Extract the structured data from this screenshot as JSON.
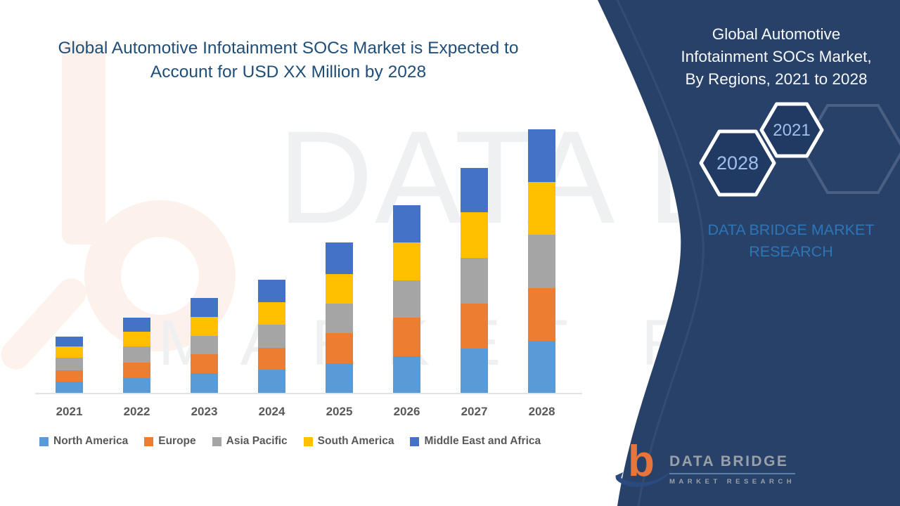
{
  "chart": {
    "title_lines": [
      "Global Automotive Infotainment SOCs Market is Expected to",
      "Account for USD XX Million by 2028"
    ],
    "title_color": "#1f4e79"
  },
  "chart_data": {
    "type": "bar",
    "stacked": true,
    "title": "Global Automotive Infotainment SOCs Market is Expected to Account for USD XX Million by 2028",
    "categories": [
      "2021",
      "2022",
      "2023",
      "2024",
      "2025",
      "2026",
      "2027",
      "2028"
    ],
    "series": [
      {
        "name": "North America",
        "color": "#5b9bd5",
        "values": [
          16,
          21,
          28,
          33,
          42,
          52,
          63,
          74
        ]
      },
      {
        "name": "Europe",
        "color": "#ed7d31",
        "values": [
          16,
          22,
          27,
          31,
          43,
          55,
          64,
          75
        ]
      },
      {
        "name": "Asia Pacific",
        "color": "#a5a5a5",
        "values": [
          18,
          23,
          26,
          33,
          42,
          53,
          65,
          76
        ]
      },
      {
        "name": "South America",
        "color": "#ffc000",
        "values": [
          16,
          21,
          27,
          32,
          42,
          54,
          65,
          75
        ]
      },
      {
        "name": "Middle East and Africa",
        "color": "#4472c4",
        "values": [
          14,
          20,
          27,
          32,
          45,
          53,
          63,
          75
        ]
      }
    ],
    "stack_totals": [
      80,
      107,
      135,
      161,
      214,
      267,
      320,
      375
    ],
    "value_axis": {
      "visible": false,
      "unit": "USD Million (values shown as XX, not disclosed)"
    },
    "grid": false,
    "legend_position": "bottom"
  },
  "panel": {
    "background": "#203a64",
    "title_lines": [
      "Global Automotive",
      "Infotainment SOCs Market,",
      "By Regions, 2021 to 2028"
    ],
    "hexagon_back_year": "2028",
    "hexagon_front_year": "2021",
    "brand_text": "DATA BRIDGE MARKET RESEARCH",
    "brand_color": "#2e75b6"
  },
  "logo": {
    "letter": "b",
    "name_line": "DATA BRIDGE",
    "sub_line": "MARKET RESEARCH"
  },
  "watermark": {
    "line1": "DATA BRIDGE",
    "line2": "MARKET RESEARCH"
  }
}
